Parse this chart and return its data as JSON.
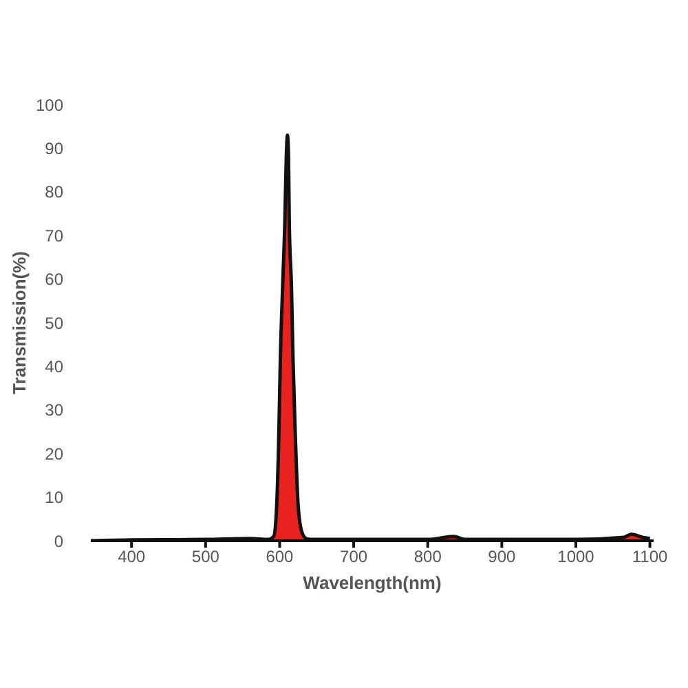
{
  "chart_data": {
    "type": "area",
    "xlabel": "Wavelength(nm)",
    "ylabel": "Transmission(%)",
    "x": [
      345,
      400,
      500,
      560,
      585,
      592,
      596,
      599,
      601,
      604,
      607,
      609,
      610.5,
      612,
      613,
      616,
      618,
      621,
      625,
      630,
      636,
      645,
      700,
      800,
      835,
      850,
      1000,
      1065,
      1075,
      1090,
      1100
    ],
    "series": [
      {
        "color": "#e8231f",
        "values": [
          0,
          0.2,
          0.3,
          0.5,
          0.3,
          1,
          8,
          25,
          42,
          58,
          73,
          88,
          93,
          88,
          73,
          58,
          42,
          25,
          8,
          2,
          0.5,
          0.3,
          0.3,
          0.3,
          1,
          0.3,
          0.3,
          0.8,
          1.5,
          0.8,
          0.5
        ]
      }
    ],
    "xlim": [
      345,
      1105
    ],
    "xticks": [
      400,
      500,
      600,
      700,
      800,
      900,
      1000,
      1100
    ],
    "ylim": [
      0,
      100
    ],
    "yticks": [
      0,
      10,
      20,
      30,
      40,
      50,
      60,
      70,
      80,
      90,
      100
    ],
    "grid": false,
    "legend": false
  }
}
